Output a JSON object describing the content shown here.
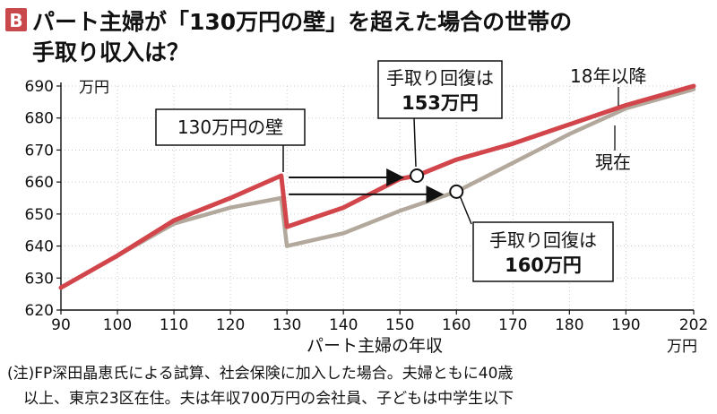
{
  "header": {
    "badge": "B",
    "title_line1": "パート主婦が「130万円の壁」を超えた場合の世帯の",
    "title_line2": "手取り収入は？"
  },
  "colors": {
    "badge": "#c9484c",
    "series_18": "#d1454b",
    "series_now": "#b3a89c",
    "text": "#111111"
  },
  "chart_data": {
    "type": "line",
    "xlabel": "パート主婦の年収",
    "x_unit": "万円",
    "y_unit": "万円",
    "xlim": [
      90,
      202
    ],
    "ylim": [
      620,
      690
    ],
    "xticks": [
      90,
      100,
      110,
      120,
      130,
      140,
      150,
      160,
      170,
      180,
      190,
      202
    ],
    "yticks": [
      620,
      630,
      640,
      650,
      660,
      670,
      680,
      690
    ],
    "series": [
      {
        "name": "18年以降",
        "color": "#d1454b",
        "points": [
          [
            90,
            627
          ],
          [
            100,
            637
          ],
          [
            110,
            648
          ],
          [
            120,
            655
          ],
          [
            129,
            662
          ],
          [
            130,
            646
          ],
          [
            140,
            652
          ],
          [
            150,
            661
          ],
          [
            153,
            662
          ],
          [
            160,
            667
          ],
          [
            170,
            672
          ],
          [
            180,
            678
          ],
          [
            190,
            684
          ],
          [
            202,
            690
          ]
        ]
      },
      {
        "name": "現在",
        "color": "#b3a89c",
        "points": [
          [
            90,
            627
          ],
          [
            100,
            637
          ],
          [
            110,
            647
          ],
          [
            120,
            652
          ],
          [
            129,
            655
          ],
          [
            130,
            640
          ],
          [
            140,
            644
          ],
          [
            150,
            651
          ],
          [
            160,
            657
          ],
          [
            170,
            666
          ],
          [
            180,
            675
          ],
          [
            190,
            683
          ],
          [
            202,
            689
          ]
        ]
      }
    ],
    "annotations": [
      {
        "text": "130万円の壁"
      },
      {
        "text_line1": "手取り回復は",
        "text_line2": "153万円",
        "x": 153,
        "y": 662
      },
      {
        "text_line1": "手取り回復は",
        "text_line2": "160万円",
        "x": 160,
        "y": 657
      }
    ]
  },
  "note": {
    "line1": "(注)FP深田晶恵氏による試算、社会保険に加入した場合。夫婦ともに40歳",
    "line2": "以上、東京23区在住。夫は年収700万円の会社員、子どもは中学生以下"
  }
}
